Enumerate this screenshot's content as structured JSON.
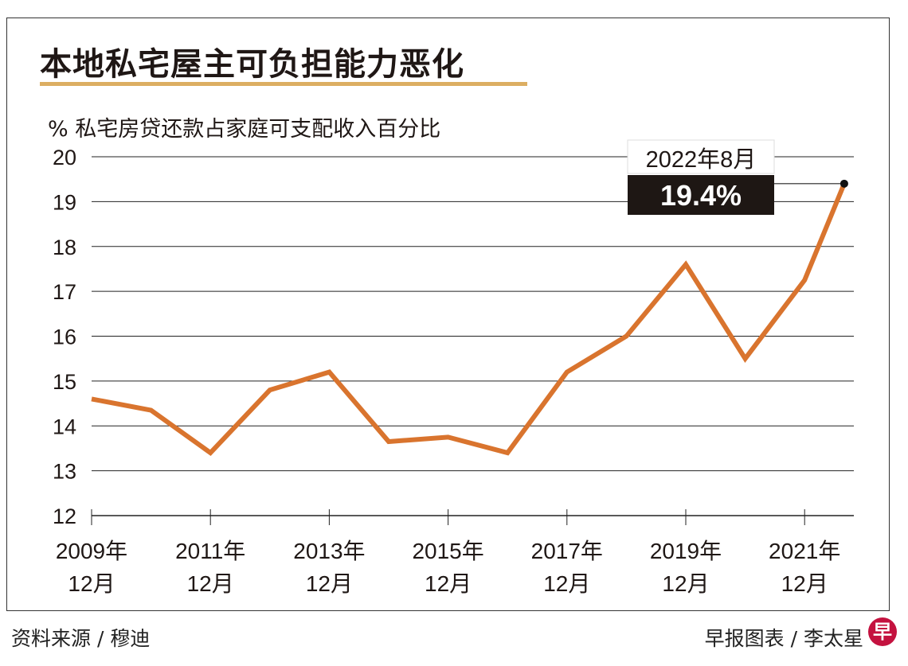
{
  "title": "本地私宅屋主可负担能力恶化",
  "source": "资料来源 / 穆迪",
  "credit": "早报图表 / 李太星",
  "logo_text": "早",
  "colors": {
    "line": "#d9742e",
    "accent_bar": "#dcae62",
    "annotation_bg": "#1e1714"
  },
  "chart_data": {
    "type": "line",
    "title": "本地私宅屋主可负担能力恶化",
    "ylabel": "% 私宅房贷还款占家庭可支配收入百分比",
    "xlabel": "",
    "ylim": [
      12,
      20
    ],
    "yticks": [
      "12",
      "13",
      "14",
      "15",
      "16",
      "17",
      "18",
      "19",
      "20"
    ],
    "xtick_labels": [
      {
        "year": "2009年",
        "month": "12月"
      },
      {
        "year": "2011年",
        "month": "12月"
      },
      {
        "year": "2013年",
        "month": "12月"
      },
      {
        "year": "2015年",
        "month": "12月"
      },
      {
        "year": "2017年",
        "month": "12月"
      },
      {
        "year": "2019年",
        "month": "12月"
      },
      {
        "year": "2021年",
        "month": "12月"
      }
    ],
    "grid": true,
    "x": [
      "2009-12",
      "2010-12",
      "2011-12",
      "2012-12",
      "2013-12",
      "2014-12",
      "2015-12",
      "2016-12",
      "2017-12",
      "2018-12",
      "2019-12",
      "2020-12",
      "2021-12",
      "2022-08"
    ],
    "values": [
      14.6,
      14.35,
      13.4,
      14.8,
      15.2,
      13.65,
      13.75,
      13.4,
      15.2,
      16.0,
      17.6,
      15.5,
      17.25,
      19.4
    ],
    "annotation": {
      "date": "2022年8月",
      "value": "19.4%"
    }
  }
}
